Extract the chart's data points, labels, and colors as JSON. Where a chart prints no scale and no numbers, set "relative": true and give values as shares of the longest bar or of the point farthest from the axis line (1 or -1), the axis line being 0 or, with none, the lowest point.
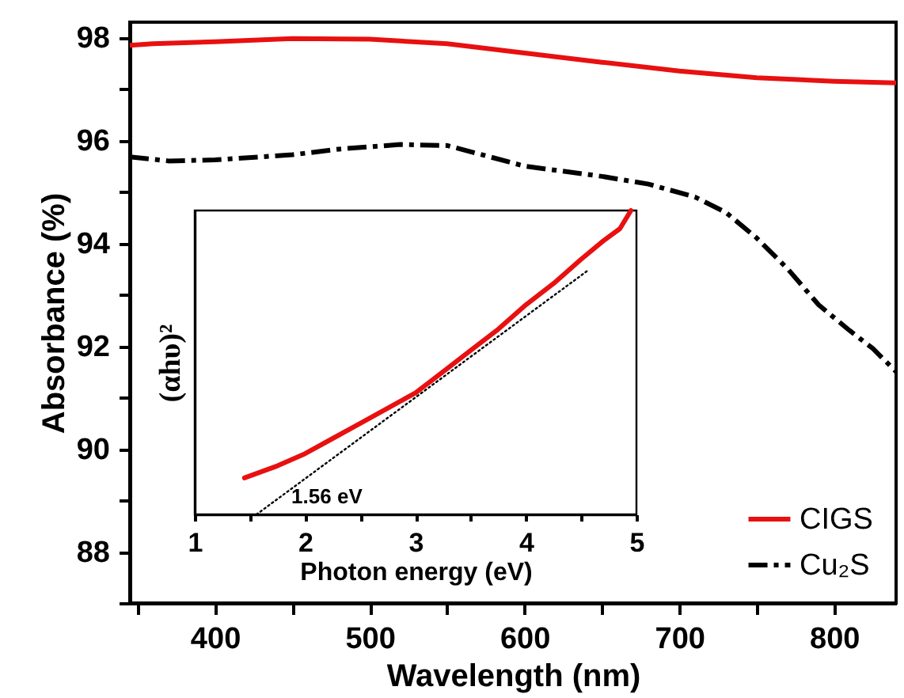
{
  "chart_data": [
    {
      "type": "line",
      "xlabel": "Wavelength (nm)",
      "ylabel": "Absorbance (%)",
      "xlim": [
        345,
        840
      ],
      "ylim": [
        87,
        98.3
      ],
      "xticks": [
        {
          "value": 350,
          "label": null
        },
        400,
        {
          "value": 450,
          "label": null
        },
        500,
        {
          "value": 550,
          "label": null
        },
        600,
        {
          "value": 650,
          "label": null
        },
        700,
        {
          "value": 750,
          "label": null
        },
        800
      ],
      "yticks": [
        {
          "value": 87,
          "label": null
        },
        88,
        {
          "value": 89,
          "label": null
        },
        90,
        {
          "value": 91,
          "label": null
        },
        92,
        {
          "value": 93,
          "label": null
        },
        94,
        {
          "value": 95,
          "label": null
        },
        96,
        {
          "value": 97,
          "label": null
        },
        98
      ],
      "grid": false,
      "legend": "bottom right",
      "series": [
        {
          "name": "CIGS",
          "color": "#e81010",
          "line_style": "solid",
          "x": [
            345,
            360,
            400,
            450,
            500,
            550,
            600,
            650,
            700,
            750,
            800,
            840
          ],
          "values": [
            97.85,
            97.88,
            97.92,
            97.98,
            97.97,
            97.88,
            97.7,
            97.52,
            97.35,
            97.22,
            97.15,
            97.12
          ]
        },
        {
          "name": "Cu₂S",
          "color": "#000000",
          "line_style": "dashed",
          "x": [
            345,
            370,
            400,
            450,
            480,
            520,
            550,
            600,
            650,
            680,
            710,
            730,
            750,
            770,
            790,
            810,
            825,
            840
          ],
          "values": [
            95.68,
            95.6,
            95.62,
            95.72,
            95.83,
            95.92,
            95.9,
            95.5,
            95.3,
            95.15,
            94.9,
            94.6,
            94.1,
            93.5,
            92.8,
            92.3,
            91.95,
            91.5
          ]
        }
      ]
    },
    {
      "type": "line",
      "relative": true,
      "xlabel": "Photon energy (eV)",
      "ylabel": "(αhυ)²",
      "xlim": [
        1,
        5
      ],
      "xticks": [
        1,
        {
          "value": 1.5,
          "label": null
        },
        2,
        {
          "value": 2.5,
          "label": null
        },
        3,
        {
          "value": 3.5,
          "label": null
        },
        4,
        {
          "value": 4.5,
          "label": null
        },
        5
      ],
      "tick_labels": "x",
      "annotations": [
        {
          "text": "1.56 eV",
          "x": 1.56,
          "y": 0
        }
      ],
      "series": [
        {
          "color": "#e81010",
          "line_style": "solid",
          "x": [
            1.45,
            1.75,
            2.0,
            2.25,
            2.5,
            2.75,
            3.0,
            3.25,
            3.5,
            3.75,
            4.0,
            4.25,
            4.5,
            4.7,
            4.85,
            4.95
          ],
          "values": [
            0.12,
            0.16,
            0.2,
            0.25,
            0.3,
            0.35,
            0.4,
            0.47,
            0.54,
            0.61,
            0.69,
            0.76,
            0.84,
            0.9,
            0.94,
            1.0
          ]
        },
        {
          "type": "line",
          "color": "#000000",
          "line_style": "dotted",
          "x": [
            1.56,
            4.55
          ],
          "values": [
            0,
            0.8
          ]
        }
      ]
    }
  ]
}
